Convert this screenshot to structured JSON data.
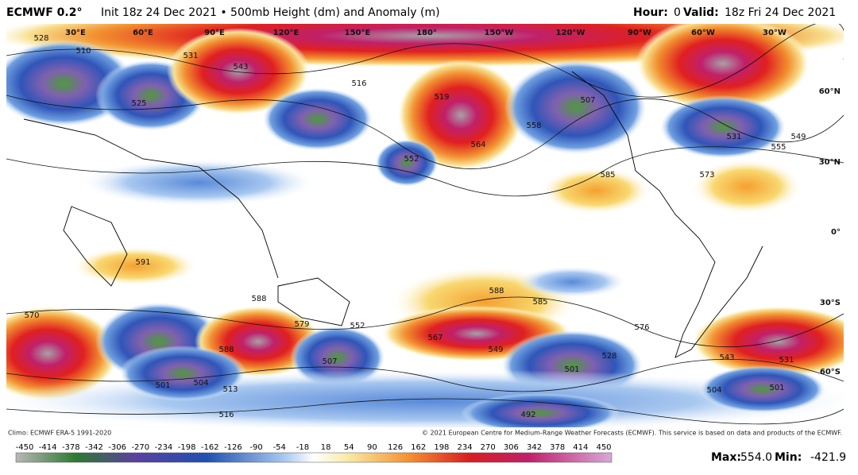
{
  "header": {
    "model": "ECMWF 0.2°",
    "title": "Init 18z 24 Dec 2021 • 500mb Height (dm) and Anomaly (m)",
    "hour_label": "Hour:",
    "hour": "0",
    "valid_label": "Valid:",
    "valid": "18z Fri 24 Dec 2021"
  },
  "map": {
    "lon_labels": [
      "30°E",
      "60°E",
      "90°E",
      "120°E",
      "150°E",
      "180°",
      "150°W",
      "120°W",
      "90°W",
      "60°W",
      "30°W"
    ],
    "lat_labels": [
      "60°N",
      "30°N",
      "0°",
      "30°S",
      "60°S"
    ],
    "contour_labels": [
      "528",
      "531",
      "543",
      "510",
      "525",
      "516",
      "519",
      "588",
      "564",
      "552",
      "558",
      "507",
      "531",
      "549",
      "555",
      "573",
      "585",
      "591",
      "588",
      "579",
      "570",
      "552",
      "501",
      "504",
      "513",
      "516",
      "507",
      "567",
      "549",
      "585",
      "588",
      "501",
      "528",
      "543",
      "501",
      "504",
      "492",
      "576",
      "531"
    ]
  },
  "footer": {
    "climo": "Climo: ECMWF ERA-5 1991-2020",
    "credit": "© 2021 European Centre for Medium-Range Weather Forecasts (ECMWF). This service is based on data and products of the ECMWF.",
    "colorbar_ticks": [
      -450,
      -414,
      -378,
      -342,
      -306,
      -270,
      -234,
      -198,
      -162,
      -126,
      -90,
      -54,
      -18,
      18,
      54,
      90,
      126,
      162,
      198,
      234,
      270,
      306,
      342,
      378,
      414,
      450
    ],
    "max_label": "Max:",
    "max": "554.0",
    "min_label": "Min:",
    "min": "-421.9"
  }
}
